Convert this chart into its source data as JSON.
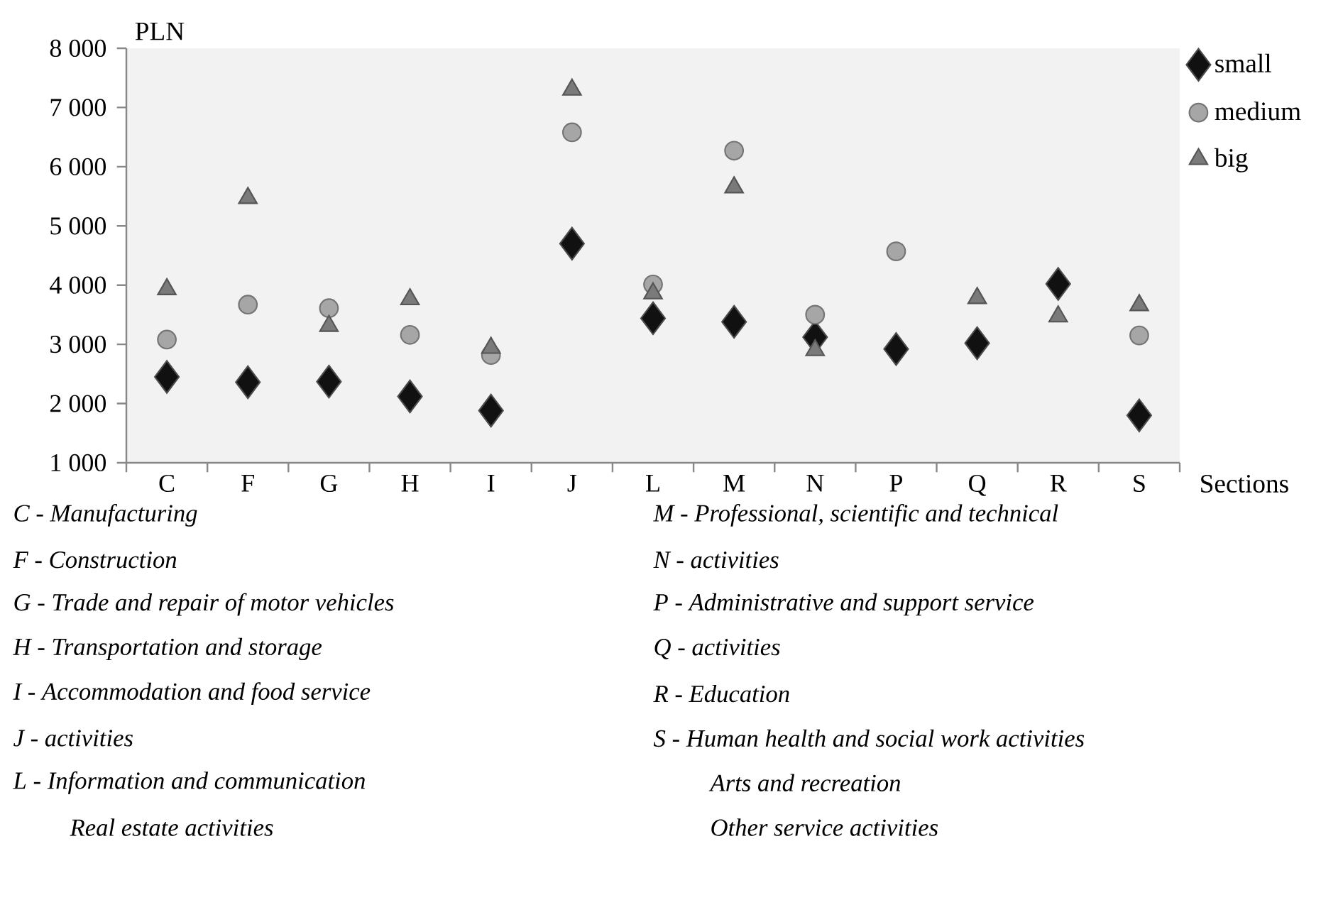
{
  "chart_data": {
    "type": "scatter",
    "ylabel": "PLN",
    "xlabel": "Sections",
    "categories": [
      "C",
      "F",
      "G",
      "H",
      "I",
      "J",
      "L",
      "M",
      "N",
      "P",
      "Q",
      "R",
      "S"
    ],
    "ylim": [
      1000,
      8000
    ],
    "yticks": [
      {
        "value": 1000,
        "label": "1 000"
      },
      {
        "value": 2000,
        "label": "2 000"
      },
      {
        "value": 3000,
        "label": "3 000"
      },
      {
        "value": 4000,
        "label": "4 000"
      },
      {
        "value": 5000,
        "label": "5 000"
      },
      {
        "value": 6000,
        "label": "6 000"
      },
      {
        "value": 7000,
        "label": "7 000"
      },
      {
        "value": 8000,
        "label": "8 000"
      }
    ],
    "grid": false,
    "legend": "right",
    "series": [
      {
        "name": "small",
        "color": "#111111",
        "marker": "diamond",
        "values": [
          2450,
          2360,
          2370,
          2120,
          1880,
          4700,
          3440,
          3380,
          3120,
          2920,
          3020,
          4020,
          1800
        ]
      },
      {
        "name": "medium",
        "color": "#a6a6a6",
        "marker": "circle",
        "values": [
          3080,
          3670,
          3610,
          3160,
          2820,
          6580,
          4010,
          6270,
          3500,
          4570,
          null,
          null,
          3150
        ]
      },
      {
        "name": "big",
        "color": "#7a7a7a",
        "marker": "triangle",
        "values": [
          3930,
          5470,
          3310,
          3760,
          2940,
          7300,
          3860,
          5650,
          2900,
          null,
          3780,
          3470,
          3660
        ]
      }
    ],
    "annotations": [
      "C  - Manufacturing",
      "F  - Construction",
      "G  - Trade and repair of motor vehicles",
      "H  - Transportation and storage",
      "I  - Accommodation and food service",
      "J  - activities",
      "L  - Information and communication",
      "Real estate activities",
      "M  - Professional, scientific and technical",
      "N  - activities",
      "P  - Administrative and support service",
      "Q  - activities",
      "R  - Education",
      "S  - Human health and social work activities",
      "Arts and recreation",
      "Other service activities"
    ]
  }
}
